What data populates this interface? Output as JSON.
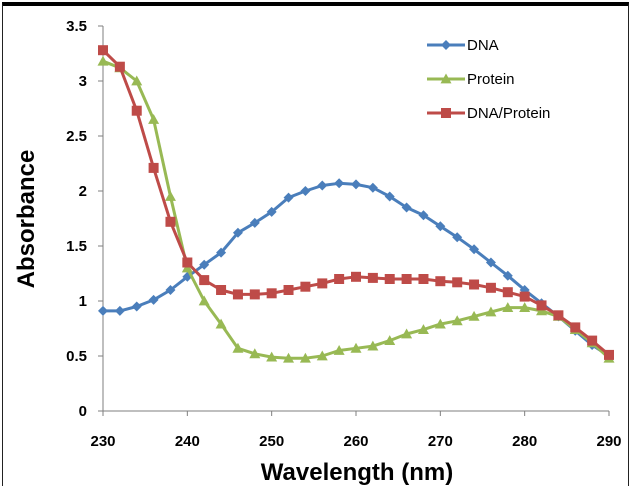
{
  "chart_data": {
    "type": "line",
    "xlabel": "Wavelength (nm)",
    "ylabel": "Absorbance",
    "xlim": [
      230,
      290
    ],
    "ylim": [
      0,
      3.5
    ],
    "x_ticks": [
      230,
      240,
      250,
      260,
      270,
      280,
      290
    ],
    "y_ticks": [
      0,
      0.5,
      1,
      1.5,
      2,
      2.5,
      3,
      3.5
    ],
    "y_tick_labels": [
      "0",
      "0.5",
      "1",
      "1.5",
      "2",
      "2.5",
      "3",
      "3.5"
    ],
    "grid": false,
    "legend_position": "top-right",
    "x": [
      230,
      232,
      234,
      236,
      238,
      240,
      242,
      244,
      246,
      248,
      250,
      252,
      254,
      256,
      258,
      260,
      262,
      264,
      266,
      268,
      270,
      272,
      274,
      276,
      278,
      280,
      282,
      284,
      286,
      288,
      290
    ],
    "series": [
      {
        "name": "DNA",
        "color": "#4a7ebb",
        "marker": "diamond",
        "values": [
          0.91,
          0.91,
          0.95,
          1.01,
          1.1,
          1.22,
          1.33,
          1.44,
          1.62,
          1.71,
          1.81,
          1.94,
          2.0,
          2.05,
          2.07,
          2.06,
          2.03,
          1.95,
          1.85,
          1.78,
          1.68,
          1.58,
          1.47,
          1.35,
          1.23,
          1.1,
          0.98,
          0.86,
          0.73,
          0.6,
          0.5
        ]
      },
      {
        "name": "Protein",
        "color": "#98b954",
        "marker": "triangle",
        "values": [
          3.18,
          3.12,
          3.0,
          2.65,
          1.95,
          1.3,
          1.0,
          0.79,
          0.57,
          0.52,
          0.49,
          0.48,
          0.48,
          0.5,
          0.55,
          0.57,
          0.59,
          0.64,
          0.7,
          0.74,
          0.79,
          0.82,
          0.86,
          0.9,
          0.94,
          0.94,
          0.91,
          0.86,
          0.74,
          0.62,
          0.48
        ]
      },
      {
        "name": "DNA/Protein",
        "color": "#be4b48",
        "marker": "square",
        "values": [
          3.28,
          3.13,
          2.73,
          2.21,
          1.72,
          1.35,
          1.19,
          1.1,
          1.06,
          1.06,
          1.07,
          1.1,
          1.13,
          1.16,
          1.2,
          1.22,
          1.21,
          1.2,
          1.2,
          1.2,
          1.18,
          1.17,
          1.15,
          1.12,
          1.08,
          1.04,
          0.96,
          0.87,
          0.76,
          0.64,
          0.51
        ]
      }
    ]
  }
}
